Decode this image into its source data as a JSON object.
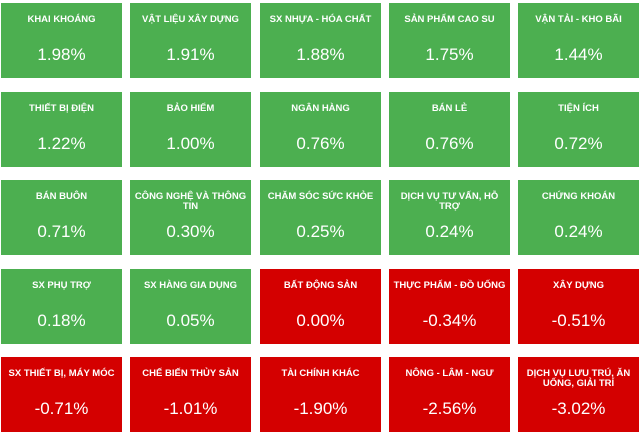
{
  "colors": {
    "positive": "#4caf50",
    "negative": "#d40000",
    "text": "#ffffff"
  },
  "tiles": [
    {
      "name": "KHAI KHOÁNG",
      "value": "1.98%",
      "status": "up"
    },
    {
      "name": "VẬT LIỆU XÂY DỰNG",
      "value": "1.91%",
      "status": "up"
    },
    {
      "name": "SX NHỰA - HÓA CHẤT",
      "value": "1.88%",
      "status": "up"
    },
    {
      "name": "SẢN PHẨM CAO SU",
      "value": "1.75%",
      "status": "up"
    },
    {
      "name": "VẬN TẢI - KHO BÃI",
      "value": "1.44%",
      "status": "up"
    },
    {
      "name": "THIẾT BỊ ĐIỆN",
      "value": "1.22%",
      "status": "up"
    },
    {
      "name": "BẢO HIỂM",
      "value": "1.00%",
      "status": "up"
    },
    {
      "name": "NGÂN HÀNG",
      "value": "0.76%",
      "status": "up"
    },
    {
      "name": "BÁN LẺ",
      "value": "0.76%",
      "status": "up"
    },
    {
      "name": "TIỆN ÍCH",
      "value": "0.72%",
      "status": "up"
    },
    {
      "name": "BÁN BUÔN",
      "value": "0.71%",
      "status": "up"
    },
    {
      "name": "CÔNG NGHỆ VÀ THÔNG TIN",
      "value": "0.30%",
      "status": "up"
    },
    {
      "name": "CHĂM SÓC SỨC KHỎE",
      "value": "0.25%",
      "status": "up"
    },
    {
      "name": "DỊCH VỤ TƯ VẤN, HỖ TRỢ",
      "value": "0.24%",
      "status": "up"
    },
    {
      "name": "CHỨNG KHOÁN",
      "value": "0.24%",
      "status": "up"
    },
    {
      "name": "SX PHỤ TRỢ",
      "value": "0.18%",
      "status": "up"
    },
    {
      "name": "SX HÀNG GIA DỤNG",
      "value": "0.05%",
      "status": "up"
    },
    {
      "name": "BẤT ĐỘNG SẢN",
      "value": "0.00%",
      "status": "flat"
    },
    {
      "name": "THỰC PHẨM - ĐỒ UỐNG",
      "value": "-0.34%",
      "status": "down"
    },
    {
      "name": "XÂY DỰNG",
      "value": "-0.51%",
      "status": "down"
    },
    {
      "name": "SX THIẾT BỊ, MÁY MÓC",
      "value": "-0.71%",
      "status": "down"
    },
    {
      "name": "CHẾ BIẾN THỦY SẢN",
      "value": "-1.01%",
      "status": "down"
    },
    {
      "name": "TÀI CHÍNH KHÁC",
      "value": "-1.90%",
      "status": "down"
    },
    {
      "name": "NÔNG - LÂM - NGƯ",
      "value": "-2.56%",
      "status": "down"
    },
    {
      "name": "DỊCH VỤ LƯU TRÚ, ĂN UỐNG, GIẢI TRÍ",
      "value": "-3.02%",
      "status": "down"
    }
  ]
}
